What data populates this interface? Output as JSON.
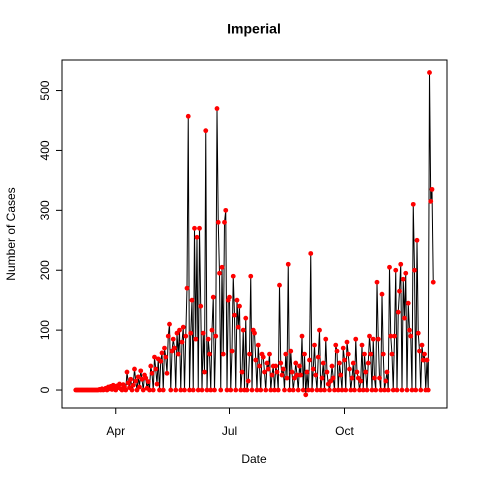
{
  "chart_data": {
    "type": "line",
    "title": "Imperial",
    "xlabel": "Date",
    "ylabel": "Number of Cases",
    "line_color": "#000000",
    "point_color": "#ff0000",
    "xlim": [
      49,
      357
    ],
    "ylim": [
      -30,
      551
    ],
    "xticks": [
      {
        "value": 92,
        "label": "Apr"
      },
      {
        "value": 183,
        "label": "Jul"
      },
      {
        "value": 275,
        "label": "Oct"
      }
    ],
    "yticks": [
      0,
      100,
      200,
      300,
      400,
      500
    ],
    "x": [
      60,
      61,
      62,
      63,
      64,
      65,
      66,
      67,
      68,
      69,
      70,
      71,
      72,
      73,
      74,
      75,
      76,
      77,
      78,
      79,
      80,
      81,
      82,
      83,
      84,
      85,
      86,
      87,
      88,
      89,
      90,
      91,
      92,
      93,
      94,
      95,
      96,
      97,
      98,
      99,
      100,
      101,
      102,
      103,
      104,
      105,
      106,
      107,
      108,
      109,
      110,
      111,
      112,
      113,
      114,
      115,
      116,
      117,
      118,
      119,
      120,
      121,
      122,
      123,
      124,
      125,
      126,
      127,
      128,
      129,
      130,
      131,
      132,
      133,
      134,
      135,
      136,
      137,
      138,
      139,
      140,
      141,
      142,
      143,
      144,
      145,
      146,
      147,
      148,
      149,
      150,
      151,
      152,
      153,
      154,
      155,
      156,
      157,
      158,
      159,
      160,
      161,
      162,
      163,
      164,
      165,
      166,
      167,
      168,
      169,
      170,
      171,
      172,
      173,
      174,
      175,
      176,
      177,
      178,
      179,
      180,
      181,
      182,
      183,
      184,
      185,
      186,
      187,
      188,
      189,
      190,
      191,
      192,
      193,
      194,
      195,
      196,
      197,
      198,
      199,
      200,
      201,
      202,
      203,
      204,
      205,
      206,
      207,
      208,
      209,
      210,
      211,
      212,
      213,
      214,
      215,
      216,
      217,
      218,
      219,
      220,
      221,
      222,
      223,
      224,
      225,
      226,
      227,
      228,
      229,
      230,
      231,
      232,
      233,
      234,
      235,
      236,
      237,
      238,
      239,
      240,
      241,
      242,
      243,
      244,
      245,
      246,
      247,
      248,
      249,
      250,
      251,
      252,
      253,
      254,
      255,
      256,
      257,
      258,
      259,
      260,
      261,
      262,
      263,
      264,
      265,
      266,
      267,
      268,
      269,
      270,
      271,
      272,
      273,
      274,
      275,
      276,
      277,
      278,
      279,
      280,
      281,
      282,
      283,
      284,
      285,
      286,
      287,
      288,
      289,
      290,
      291,
      292,
      293,
      294,
      295,
      296,
      297,
      298,
      299,
      300,
      301,
      302,
      303,
      304,
      305,
      306,
      307,
      308,
      309,
      310,
      311,
      312,
      313,
      314,
      315,
      316,
      317,
      318,
      319,
      320,
      321,
      322,
      323,
      324,
      325,
      326,
      327,
      328,
      329,
      330,
      331,
      332,
      333,
      334,
      335,
      336,
      337,
      338,
      339,
      340,
      341,
      342,
      343,
      344,
      345,
      346
    ],
    "values": [
      0,
      0,
      0,
      0,
      0,
      0,
      0,
      0,
      0,
      0,
      0,
      0,
      0,
      0,
      0,
      0,
      0,
      0,
      0,
      1,
      0,
      2,
      0,
      1,
      3,
      0,
      5,
      2,
      6,
      1,
      8,
      3,
      0,
      7,
      4,
      10,
      2,
      0,
      9,
      5,
      0,
      30,
      12,
      4,
      18,
      0,
      8,
      35,
      15,
      0,
      22,
      5,
      32,
      18,
      0,
      25,
      20,
      3,
      14,
      0,
      40,
      28,
      0,
      55,
      35,
      10,
      52,
      0,
      48,
      62,
      0,
      70,
      55,
      28,
      90,
      110,
      0,
      65,
      85,
      70,
      0,
      95,
      60,
      100,
      0,
      80,
      105,
      0,
      90,
      170,
      457,
      0,
      95,
      150,
      0,
      270,
      85,
      255,
      0,
      270,
      140,
      0,
      95,
      30,
      433,
      0,
      85,
      60,
      0,
      100,
      155,
      0,
      90,
      470,
      280,
      195,
      0,
      205,
      60,
      280,
      300,
      0,
      150,
      155,
      0,
      65,
      190,
      125,
      0,
      150,
      105,
      140,
      0,
      30,
      100,
      0,
      120,
      0,
      15,
      60,
      190,
      0,
      100,
      95,
      50,
      0,
      75,
      40,
      0,
      60,
      55,
      30,
      0,
      45,
      35,
      60,
      0,
      25,
      40,
      0,
      40,
      30,
      0,
      175,
      45,
      25,
      35,
      0,
      60,
      20,
      210,
      0,
      65,
      30,
      0,
      20,
      45,
      25,
      0,
      40,
      25,
      90,
      0,
      60,
      -8,
      30,
      0,
      50,
      228,
      0,
      35,
      75,
      25,
      0,
      55,
      100,
      0,
      20,
      45,
      0,
      85,
      30,
      10,
      0,
      15,
      40,
      20,
      0,
      75,
      65,
      0,
      45,
      25,
      0,
      70,
      50,
      0,
      80,
      60,
      35,
      0,
      20,
      45,
      0,
      85,
      30,
      20,
      0,
      15,
      75,
      0,
      60,
      30,
      0,
      45,
      90,
      60,
      0,
      85,
      20,
      0,
      180,
      85,
      20,
      0,
      160,
      60,
      0,
      15,
      30,
      0,
      205,
      90,
      60,
      0,
      90,
      200,
      0,
      130,
      165,
      210,
      0,
      185,
      120,
      195,
      0,
      145,
      100,
      90,
      0,
      310,
      200,
      0,
      250,
      95,
      65,
      0,
      75,
      50,
      60,
      0,
      50,
      0,
      530,
      315,
      335,
      180
    ]
  }
}
